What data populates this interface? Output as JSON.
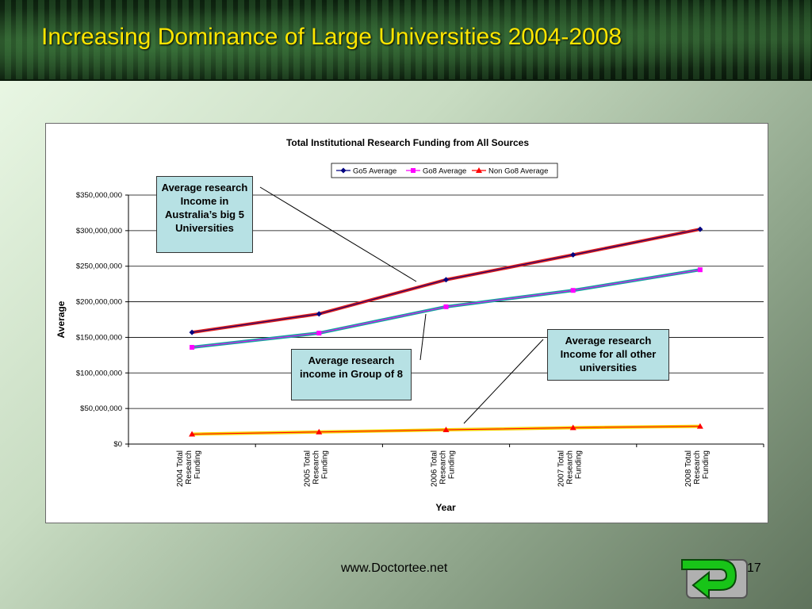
{
  "slide": {
    "title": "Increasing Dominance of Large Universities 2004-2008",
    "footer_url": "www.Doctortee.net",
    "page_number": "17"
  },
  "callouts": {
    "go5": "Average research Income in Australia’s big 5 Universities",
    "go8": "Average research income in Group of 8",
    "other": "Average research Income for all other universities"
  },
  "colors": {
    "title": "#ffe600",
    "go5_marker": "#000080",
    "go8_marker": "#ff00ff",
    "nongo8_marker": "#ff0000",
    "go5_highlight": "#e0201c",
    "go8_highlight": "#16a0a0",
    "nongo8_highlight": "#f5d000",
    "callout_bg": "#b7e1e4"
  },
  "chart_data": {
    "type": "line",
    "title": "Total Institutional Research Funding from All Sources",
    "xlabel": "Year",
    "ylabel": "Average",
    "categories": [
      "2004 Total Research Funding",
      "2005 Total Research Funding",
      "2006 Total Research Funding",
      "2007 Total Research Funding",
      "2008 Total Research Funding"
    ],
    "ylim": [
      0,
      350000000
    ],
    "yticks": [
      0,
      50000000,
      100000000,
      150000000,
      200000000,
      250000000,
      300000000,
      350000000
    ],
    "ytick_labels": [
      "$0",
      "$50,000,000",
      "$100,000,000",
      "$150,000,000",
      "$200,000,000",
      "$250,000,000",
      "$300,000,000",
      "$350,000,000"
    ],
    "grid": true,
    "legend_position": "top",
    "series": [
      {
        "name": "Go5 Average",
        "marker": "diamond",
        "values": [
          157000000,
          183000000,
          231000000,
          266000000,
          302000000
        ]
      },
      {
        "name": "Go8 Average",
        "marker": "square",
        "values": [
          136000000,
          156000000,
          193000000,
          216000000,
          245000000
        ]
      },
      {
        "name": "Non Go8 Average",
        "marker": "triangle",
        "values": [
          14000000,
          17000000,
          20000000,
          23000000,
          25000000
        ]
      }
    ]
  }
}
